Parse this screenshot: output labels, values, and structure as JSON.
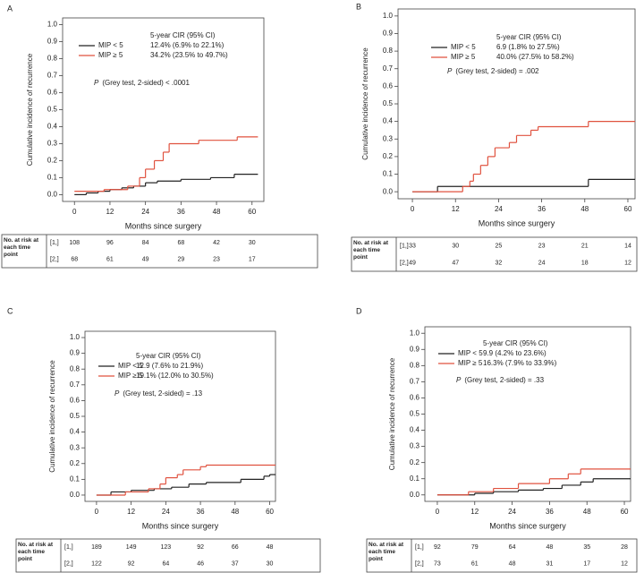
{
  "chart_data": [
    {
      "type": "line",
      "step": true,
      "panel": "A",
      "ylabel": "Cumulative incidence of recurrence",
      "xlabel": "Months since surgery",
      "xlim": [
        -4,
        64
      ],
      "xticks": [
        0,
        12,
        24,
        36,
        48,
        60
      ],
      "ylim": [
        -0.04,
        1.04
      ],
      "yticks": [
        {
          "value": 0,
          "label": "0.0"
        },
        0.1,
        0.2,
        0.3,
        0.4,
        0.5,
        0.6,
        0.7,
        0.8,
        0.9,
        {
          "value": 1,
          "label": "1.0"
        }
      ],
      "legend_title": "5-year CIR (95% CI)",
      "p_label": "P",
      "p_text": "(Grey test, 2-sided) < .0001",
      "series": [
        {
          "name": "MIP < 5",
          "ci_label": "12.4% (6.9% to 22.1%)",
          "color": "#222222",
          "x": [
            0,
            4,
            8,
            12,
            16,
            20,
            24,
            28,
            36,
            46,
            54,
            62
          ],
          "values": [
            0,
            0.01,
            0.02,
            0.03,
            0.04,
            0.05,
            0.07,
            0.08,
            0.09,
            0.1,
            0.12,
            0.12
          ]
        },
        {
          "name": "MIP ≥ 5",
          "ci_label": "34.2% (23.5% to 49.7%)",
          "color": "#e0523f",
          "x": [
            0,
            10,
            18,
            22,
            24,
            27,
            30,
            32,
            42,
            55,
            62
          ],
          "values": [
            0.02,
            0.03,
            0.05,
            0.1,
            0.15,
            0.2,
            0.25,
            0.3,
            0.32,
            0.34,
            0.34
          ]
        }
      ],
      "risk_table": {
        "title": "No. at risk at each time point",
        "rows": [
          {
            "label": "[1,]",
            "values": [
              108,
              96,
              84,
              68,
              42,
              30
            ]
          },
          {
            "label": "[2,]",
            "values": [
              68,
              61,
              49,
              29,
              23,
              17
            ]
          }
        ]
      }
    },
    {
      "type": "line",
      "step": true,
      "panel": "B",
      "ylabel": "Cumulative incidence of recurrence",
      "xlabel": "Months since surgery",
      "xlim": [
        -4,
        62
      ],
      "xticks": [
        0,
        12,
        24,
        36,
        48,
        60
      ],
      "ylim": [
        -0.04,
        1.04
      ],
      "yticks": [
        {
          "value": 0,
          "label": "0.0"
        },
        0.1,
        0.2,
        0.3,
        0.4,
        0.5,
        0.6,
        0.7,
        0.8,
        0.9,
        {
          "value": 1,
          "label": "1.0"
        }
      ],
      "legend_title": "5-year CIR (95% CI)",
      "p_label": "P",
      "p_text": "(Grey test, 2-sided) = .002",
      "series": [
        {
          "name": "MIP < 5",
          "ci_label": "6.9 (1.8% to 27.5%)",
          "color": "#222222",
          "x": [
            0,
            7,
            49,
            62
          ],
          "values": [
            0,
            0.03,
            0.07,
            0.07
          ]
        },
        {
          "name": "MIP ≥ 5",
          "ci_label": "40.0% (27.5% to 58.2%)",
          "color": "#e0523f",
          "x": [
            0,
            14,
            16,
            17,
            19,
            21,
            23,
            27,
            29,
            33,
            35,
            49,
            62
          ],
          "values": [
            0,
            0.03,
            0.06,
            0.1,
            0.15,
            0.2,
            0.25,
            0.28,
            0.32,
            0.35,
            0.37,
            0.4,
            0.4
          ]
        }
      ],
      "risk_table": {
        "title": "No. at risk at each time point",
        "rows": [
          {
            "label": "[1,]",
            "values": [
              33,
              30,
              25,
              23,
              21,
              14
            ]
          },
          {
            "label": "[2,]",
            "values": [
              49,
              47,
              32,
              24,
              18,
              12
            ]
          }
        ]
      }
    },
    {
      "type": "line",
      "step": true,
      "panel": "C",
      "ylabel": "Cumulative incidence of recurrence",
      "xlabel": "Months since surgery",
      "xlim": [
        -4,
        62
      ],
      "xticks": [
        0,
        12,
        24,
        36,
        48,
        60
      ],
      "ylim": [
        -0.04,
        1.04
      ],
      "yticks": [
        {
          "value": 0,
          "label": "0.0"
        },
        0.1,
        0.2,
        0.3,
        0.4,
        0.5,
        0.6,
        0.7,
        0.8,
        0.9,
        {
          "value": 1,
          "label": "1.0"
        }
      ],
      "legend_title": "5-year CIR (95% CI)",
      "p_label": "P",
      "p_text": "(Grey test, 2-sided) = .13",
      "series": [
        {
          "name": "MIP < 5",
          "ci_label": "12.9 (7.6% to 21.9%)",
          "color": "#222222",
          "x": [
            0,
            5,
            12,
            20,
            26,
            32,
            38,
            50,
            58,
            60,
            62
          ],
          "values": [
            0,
            0.02,
            0.03,
            0.04,
            0.05,
            0.07,
            0.08,
            0.1,
            0.12,
            0.13,
            0.13
          ]
        },
        {
          "name": "MIP ≥ 5",
          "ci_label": "19.1% (12.0% to 30.5%)",
          "color": "#e0523f",
          "x": [
            0,
            10,
            18,
            22,
            24,
            28,
            30,
            36,
            38,
            62
          ],
          "values": [
            0,
            0.02,
            0.04,
            0.07,
            0.11,
            0.13,
            0.16,
            0.18,
            0.19,
            0.19
          ]
        }
      ],
      "risk_table": {
        "title": "No. at risk at each time point",
        "rows": [
          {
            "label": "[1,]",
            "values": [
              189,
              149,
              123,
              92,
              66,
              48
            ]
          },
          {
            "label": "[2,]",
            "values": [
              122,
              92,
              64,
              46,
              37,
              30
            ]
          }
        ]
      }
    },
    {
      "type": "line",
      "step": true,
      "panel": "D",
      "ylabel": "Cumulative incidence of recurrence",
      "xlabel": "Months since surgery",
      "xlim": [
        -4,
        62
      ],
      "xticks": [
        0,
        12,
        24,
        36,
        48,
        60
      ],
      "ylim": [
        -0.04,
        1.04
      ],
      "yticks": [
        {
          "value": 0,
          "label": "0.0"
        },
        0.1,
        0.2,
        0.3,
        0.4,
        0.5,
        0.6,
        0.7,
        0.8,
        0.9,
        {
          "value": 1,
          "label": "1.0"
        }
      ],
      "legend_title": "5-year CIR (95% CI)",
      "p_label": "P",
      "p_text": "(Grey test, 2-sided) = .33",
      "series": [
        {
          "name": "MIP < 5",
          "ci_label": "9.9 (4.2% to 23.6%)",
          "color": "#222222",
          "x": [
            0,
            12,
            18,
            26,
            34,
            40,
            46,
            50,
            62
          ],
          "values": [
            0,
            0.01,
            0.02,
            0.03,
            0.04,
            0.06,
            0.08,
            0.1,
            0.1
          ]
        },
        {
          "name": "MIP ≥ 5",
          "ci_label": "16.3% (7.9% to 33.9%)",
          "color": "#e0523f",
          "x": [
            0,
            10,
            18,
            26,
            36,
            42,
            46,
            62
          ],
          "values": [
            0,
            0.02,
            0.04,
            0.07,
            0.1,
            0.13,
            0.16,
            0.16
          ]
        }
      ],
      "risk_table": {
        "title": "No. at risk at each time point",
        "rows": [
          {
            "label": "[1,]",
            "values": [
              92,
              79,
              64,
              48,
              35,
              28
            ]
          },
          {
            "label": "[2,]",
            "values": [
              73,
              61,
              48,
              31,
              17,
              12
            ]
          }
        ]
      }
    }
  ]
}
